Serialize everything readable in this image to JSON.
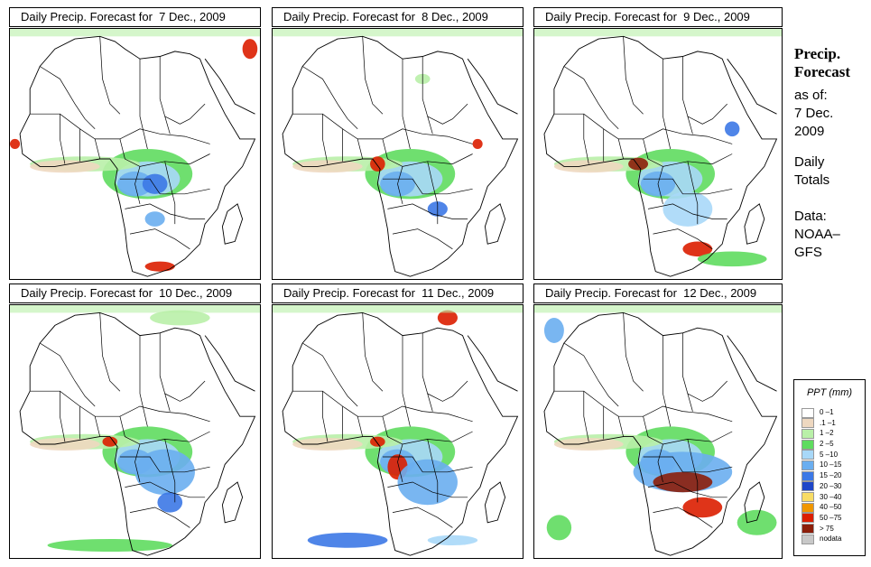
{
  "panels": [
    {
      "title_prefix": "Daily Precip. Forecast for",
      "date": "7 Dec., 2009"
    },
    {
      "title_prefix": "Daily Precip. Forecast for",
      "date": "8 Dec., 2009"
    },
    {
      "title_prefix": "Daily Precip. Forecast for",
      "date": "9 Dec., 2009"
    },
    {
      "title_prefix": "Daily Precip. Forecast for",
      "date": "10 Dec., 2009"
    },
    {
      "title_prefix": "Daily Precip. Forecast for",
      "date": "11 Dec., 2009"
    },
    {
      "title_prefix": "Daily Precip. Forecast for",
      "date": "12 Dec., 2009"
    }
  ],
  "side": {
    "title_line1": "Precip.",
    "title_line2": "Forecast",
    "asof_label": "as of:",
    "asof_line1": "7 Dec.",
    "asof_line2": "2009",
    "totals_line1": "Daily",
    "totals_line2": "Totals",
    "data_line1": "Data:",
    "data_line2": "NOAA–",
    "data_line3": "GFS"
  },
  "legend": {
    "title": "PPT (mm)",
    "items": [
      {
        "label": "0 –1",
        "color": "#ffffff"
      },
      {
        "label": ".1 –1",
        "color": "#eed8c0"
      },
      {
        "label": "1 –2",
        "color": "#b9f0a8"
      },
      {
        "label": "2 –5",
        "color": "#5fdc5f"
      },
      {
        "label": "5 –10",
        "color": "#a8d8f8"
      },
      {
        "label": "10 –15",
        "color": "#6aaef0"
      },
      {
        "label": "15 –20",
        "color": "#3c78e6"
      },
      {
        "label": "20 –30",
        "color": "#1e46c8"
      },
      {
        "label": "30 –40",
        "color": "#f8dc64"
      },
      {
        "label": "40 –50",
        "color": "#f09600"
      },
      {
        "label": "50 –75",
        "color": "#dc1e00"
      },
      {
        "label": "> 75",
        "color": "#8c1e0a"
      },
      {
        "label": "nodata",
        "color": "#c8c8c8"
      }
    ]
  }
}
